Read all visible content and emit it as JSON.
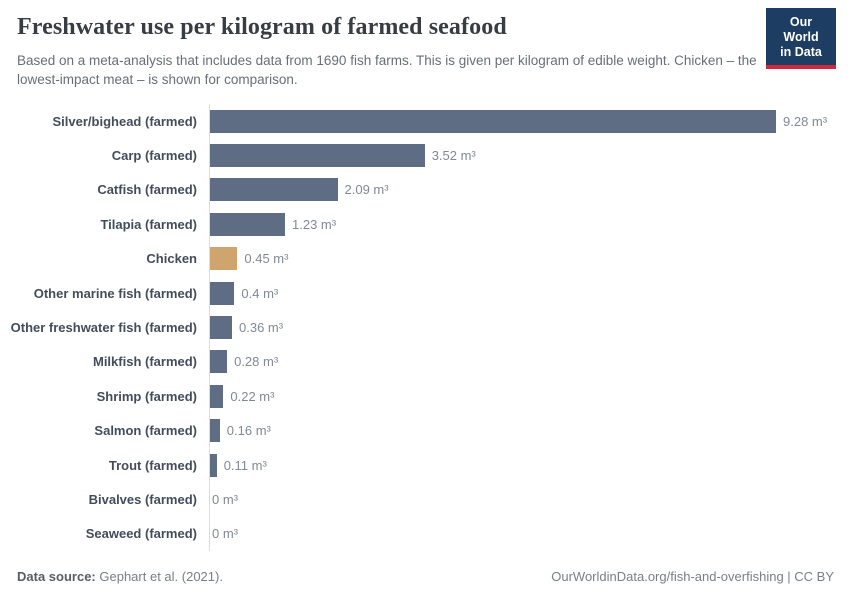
{
  "header": {
    "title": "Freshwater use per kilogram of farmed seafood",
    "subtitle": "Based on a meta-analysis that includes data from 1690 fish farms. This is given per kilogram of edible weight. Chicken – the lowest-impact meat – is shown for comparison.",
    "logo": {
      "line1": "Our World",
      "line2": "in Data"
    }
  },
  "chart_data": {
    "type": "bar",
    "orientation": "horizontal",
    "title": "Freshwater use per kilogram of farmed seafood",
    "unit": "m³",
    "xlim": [
      0,
      9.28
    ],
    "grid": false,
    "legend": "none",
    "categories": [
      "Silver/bighead (farmed)",
      "Carp (farmed)",
      "Catfish (farmed)",
      "Tilapia (farmed)",
      "Chicken",
      "Other marine fish (farmed)",
      "Other freshwater fish (farmed)",
      "Milkfish (farmed)",
      "Shrimp (farmed)",
      "Salmon (farmed)",
      "Trout (farmed)",
      "Bivalves (farmed)",
      "Seaweed (farmed)"
    ],
    "values": [
      9.28,
      3.52,
      2.09,
      1.23,
      0.45,
      0.4,
      0.36,
      0.28,
      0.22,
      0.16,
      0.11,
      0,
      0
    ],
    "value_labels": [
      "9.28 m³",
      "3.52 m³",
      "2.09 m³",
      "1.23 m³",
      "0.45 m³",
      "0.4 m³",
      "0.36 m³",
      "0.28 m³",
      "0.22 m³",
      "0.16 m³",
      "0.11 m³",
      "0 m³",
      "0 m³"
    ],
    "highlight_index": 4,
    "bar_color": "#5f6d84",
    "highlight_color": "#d0a46f"
  },
  "footer": {
    "datasource_label": "Data source:",
    "datasource_value": "Gephart et al. (2021).",
    "link_text": "OurWorldinData.org/fish-and-overfishing | CC BY"
  }
}
